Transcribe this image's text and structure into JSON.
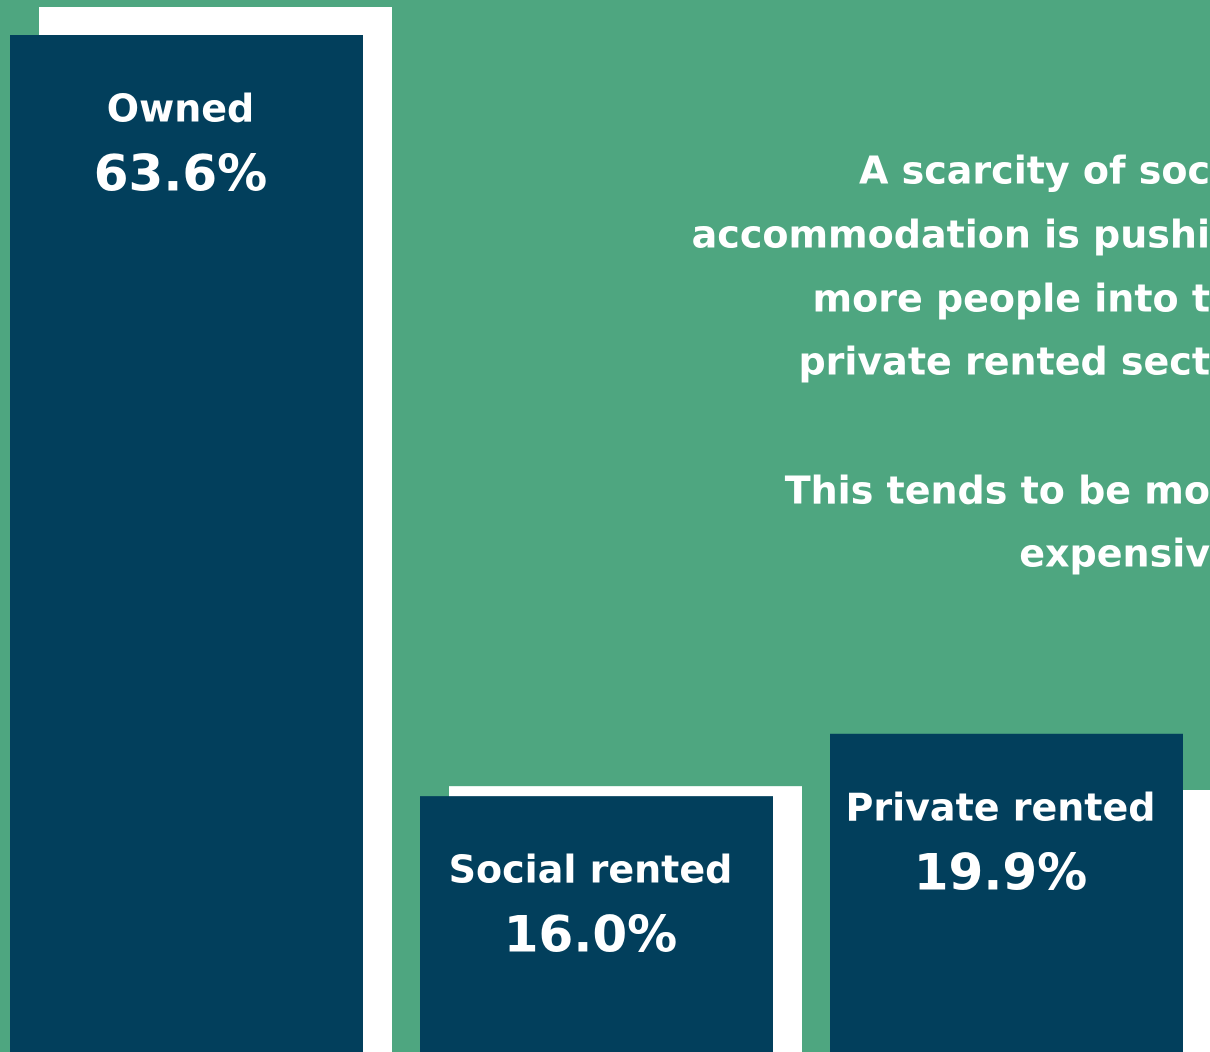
{
  "chart_data": {
    "type": "bar",
    "categories": [
      "Owned",
      "Social rented",
      "Private rented"
    ],
    "values": [
      63.6,
      16.0,
      19.9
    ],
    "value_labels": [
      "63.6%",
      "16.0%",
      "19.9%"
    ],
    "color": "#023f5c",
    "annotation": [
      "A scarcity of soc",
      "accommodation is pushi",
      "more people into t",
      "private rented sect",
      "This tends to be mo",
      "expensiv"
    ]
  }
}
